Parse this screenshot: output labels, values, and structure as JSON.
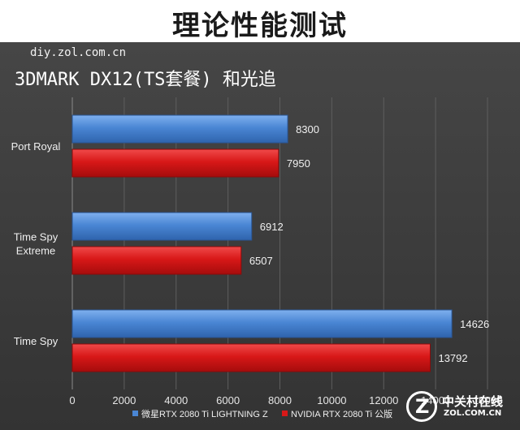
{
  "header": {
    "title": "理论性能测试",
    "url": "diy.zol.com.cn",
    "subtitle": "3DMARK DX12(TS套餐) 和光追"
  },
  "watermark": {
    "cn": "中关村在线",
    "en": "ZOL.COM.CN"
  },
  "colors": {
    "series1": "#4a86d4",
    "series2": "#d81818"
  },
  "chart_data": {
    "type": "bar",
    "orientation": "horizontal",
    "categories": [
      [
        "Port Royal"
      ],
      [
        "Time Spy",
        "Extreme"
      ],
      [
        "Time Spy"
      ]
    ],
    "series": [
      {
        "name": "微星RTX 2080 Ti LIGHTNING Z",
        "values": [
          8300,
          6912,
          14626
        ]
      },
      {
        "name": "NVIDIA RTX 2080 Ti 公版",
        "values": [
          7950,
          6507,
          13792
        ]
      }
    ],
    "xlim": [
      0,
      16000
    ],
    "xticks": [
      "0",
      "2000",
      "4000",
      "6000",
      "8000",
      "10000",
      "12000",
      "14000",
      "16000"
    ],
    "grid": true,
    "legend": "bottom"
  }
}
